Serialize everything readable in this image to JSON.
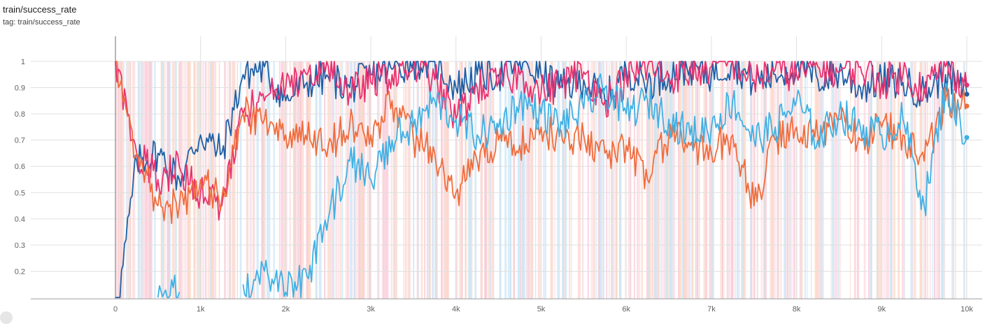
{
  "header": {
    "title": "train/success_rate",
    "tag": "tag: train/success_rate"
  },
  "chart_data": {
    "type": "line",
    "title": "train/success_rate",
    "xlabel": "",
    "ylabel": "",
    "xlim": [
      -1000,
      10200
    ],
    "ylim": [
      0.1,
      1.1
    ],
    "x_ticks": [
      "0",
      "1k",
      "2k",
      "3k",
      "4k",
      "5k",
      "6k",
      "7k",
      "8k",
      "9k",
      "10k"
    ],
    "y_ticks": [
      "0.2",
      "0.3",
      "0.4",
      "0.5",
      "0.6",
      "0.7",
      "0.8",
      "0.9",
      "1"
    ],
    "grid": true,
    "x": [
      0,
      250,
      500,
      750,
      1000,
      1250,
      1500,
      1750,
      2000,
      2250,
      2500,
      2750,
      3000,
      3250,
      3500,
      3750,
      4000,
      4250,
      4500,
      4750,
      5000,
      5250,
      5500,
      5750,
      6000,
      6250,
      6500,
      6750,
      7000,
      7250,
      7500,
      7750,
      8000,
      8250,
      8500,
      8750,
      9000,
      9250,
      9500,
      9750,
      10000
    ],
    "series": [
      {
        "color": "#1f5fa6",
        "values": [
          0.0,
          0.62,
          0.65,
          0.55,
          0.72,
          0.65,
          0.95,
          0.98,
          0.85,
          0.92,
          0.94,
          0.9,
          0.95,
          0.97,
          1.0,
          1.0,
          0.9,
          0.95,
          0.95,
          1.0,
          0.95,
          0.9,
          0.93,
          0.85,
          0.97,
          0.92,
          0.95,
          0.98,
          0.95,
          1.0,
          0.92,
          0.95,
          0.98,
          0.93,
          0.96,
          0.9,
          0.93,
          0.92,
          0.88,
          0.95,
          0.875
        ],
        "end": 0.875
      },
      {
        "color": "#e8316f",
        "values": [
          1.0,
          0.65,
          0.55,
          0.6,
          0.5,
          0.45,
          0.8,
          0.85,
          0.9,
          0.95,
          0.98,
          0.88,
          0.92,
          0.95,
          0.98,
          0.93,
          0.78,
          0.9,
          0.92,
          0.95,
          0.88,
          0.92,
          0.96,
          0.85,
          0.93,
          0.98,
          0.94,
          0.96,
          0.98,
          1.0,
          0.93,
          0.97,
          0.95,
          0.98,
          0.96,
          0.98,
          0.92,
          0.95,
          0.9,
          0.98,
          0.91
        ],
        "end": 0.91
      },
      {
        "color": "#f06c3c",
        "values": [
          1.0,
          0.65,
          0.45,
          0.45,
          0.55,
          0.48,
          0.8,
          0.78,
          0.72,
          0.7,
          0.68,
          0.75,
          0.72,
          0.85,
          0.7,
          0.65,
          0.5,
          0.62,
          0.7,
          0.68,
          0.75,
          0.7,
          0.72,
          0.65,
          0.68,
          0.55,
          0.72,
          0.68,
          0.65,
          0.72,
          0.45,
          0.7,
          0.75,
          0.72,
          0.78,
          0.7,
          0.75,
          0.72,
          0.62,
          0.85,
          0.83
        ],
        "end": 0.83
      },
      {
        "color": "#3fb0e4",
        "values": [
          null,
          null,
          0.1,
          0.12,
          null,
          null,
          0.15,
          0.2,
          0.12,
          0.18,
          0.4,
          0.62,
          0.55,
          0.7,
          0.75,
          0.85,
          0.78,
          0.72,
          0.75,
          0.85,
          0.8,
          0.76,
          0.82,
          0.9,
          0.8,
          0.85,
          0.78,
          0.72,
          0.75,
          0.85,
          0.7,
          0.75,
          0.85,
          0.7,
          0.8,
          0.75,
          0.72,
          0.78,
          0.45,
          0.9,
          0.71
        ],
        "end": 0.71
      }
    ]
  }
}
